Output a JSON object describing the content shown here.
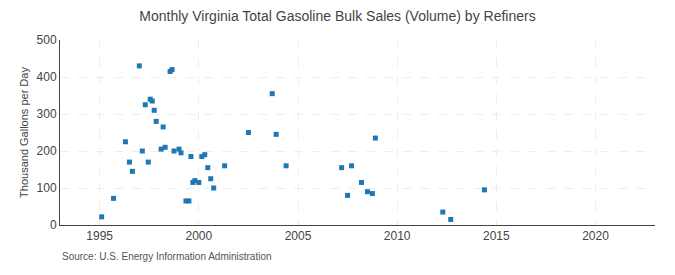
{
  "chart_data": {
    "type": "scatter",
    "title": "Monthly Virginia Total Gasoline Bulk Sales (Volume) by Refiners",
    "ylabel": "Thousand Gallons per Day",
    "annotations": [
      "Source: U.S. Energy Information Administration"
    ],
    "marker": "square",
    "grid": true,
    "xlim": [
      1993,
      2023
    ],
    "ylim": [
      0,
      500
    ],
    "xticks": [
      1995,
      2000,
      2005,
      2010,
      2015,
      2020
    ],
    "yticks": [
      0,
      100,
      200,
      300,
      400,
      500
    ],
    "x": [
      1995.1,
      1995.7,
      1996.3,
      1996.5,
      1996.65,
      1997.0,
      1997.15,
      1997.3,
      1997.45,
      1997.55,
      1997.65,
      1997.75,
      1997.85,
      1998.1,
      1998.2,
      1998.3,
      1998.55,
      1998.65,
      1998.75,
      1999.0,
      1999.1,
      1999.35,
      1999.5,
      1999.6,
      1999.7,
      1999.8,
      2000.0,
      2000.15,
      2000.3,
      2000.45,
      2000.6,
      2000.75,
      2001.3,
      2002.5,
      2003.7,
      2003.9,
      2004.4,
      2007.2,
      2007.5,
      2007.7,
      2008.2,
      2008.5,
      2008.75,
      2008.9,
      2012.3,
      2012.7,
      2014.4
    ],
    "values": [
      22,
      72,
      225,
      170,
      145,
      430,
      200,
      325,
      170,
      340,
      335,
      310,
      280,
      205,
      265,
      210,
      415,
      420,
      200,
      205,
      195,
      65,
      65,
      185,
      115,
      120,
      115,
      185,
      190,
      155,
      125,
      100,
      160,
      250,
      355,
      245,
      160,
      155,
      80,
      160,
      115,
      90,
      85,
      235,
      35,
      15,
      95
    ]
  }
}
